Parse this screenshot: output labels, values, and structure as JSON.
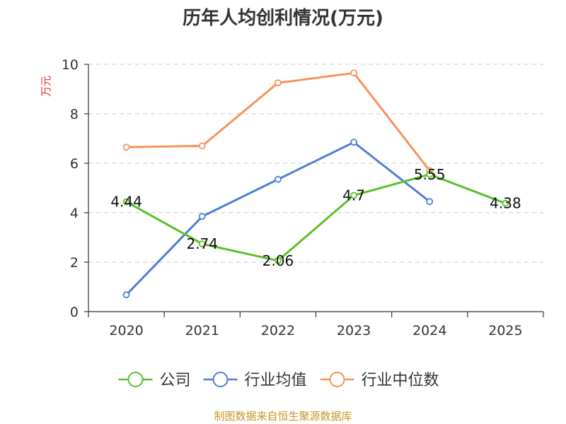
{
  "chart_data": {
    "type": "line",
    "title": "历年人均创利情况(万元)",
    "ylabel": "万元",
    "xlabel": "",
    "categories": [
      "2020",
      "2021",
      "2022",
      "2023",
      "2024",
      "2025"
    ],
    "ylim": [
      0,
      10
    ],
    "yticks": [
      0,
      2,
      4,
      6,
      8,
      10
    ],
    "grid": true,
    "legend_position": "bottom",
    "series": [
      {
        "name": "公司",
        "color": "#5cbf2a",
        "values": [
          4.44,
          2.74,
          2.06,
          4.7,
          5.55,
          4.38
        ],
        "labels": [
          "4.44",
          "2.74",
          "2.06",
          "4.7",
          "5.55",
          "4.38"
        ]
      },
      {
        "name": "行业均值",
        "color": "#4c7fd6",
        "values": [
          0.68,
          3.85,
          5.35,
          6.85,
          4.45,
          null
        ]
      },
      {
        "name": "行业中位数",
        "color": "#f5935a",
        "values": [
          6.65,
          6.7,
          9.25,
          9.65,
          5.7,
          null
        ]
      }
    ]
  },
  "source": "制图数据来自恒生聚源数据库"
}
